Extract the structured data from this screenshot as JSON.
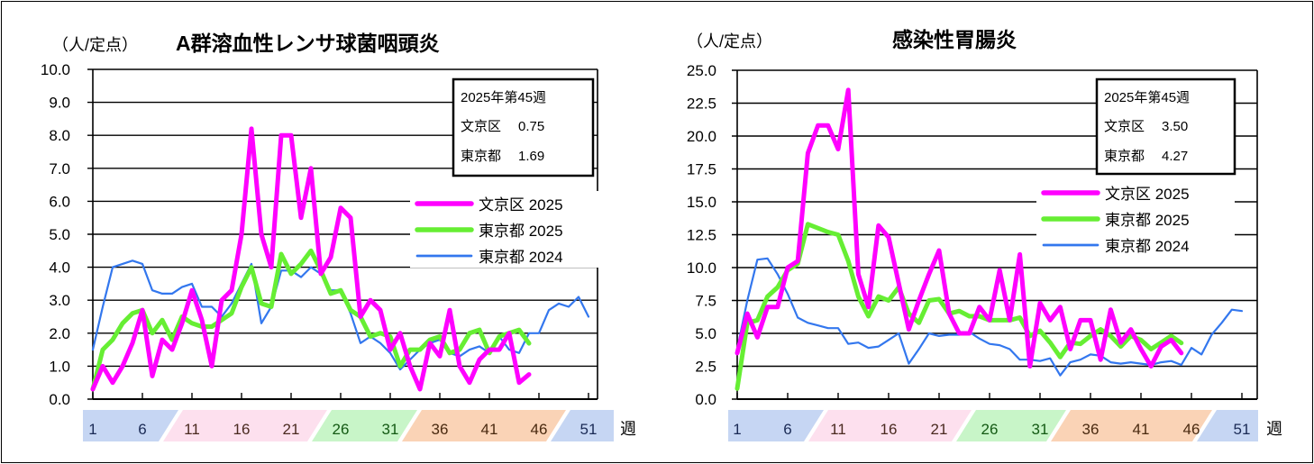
{
  "week_unit": "週",
  "colors": {
    "bunkyo_2025": "#ff00ff",
    "tokyo_2025": "#66ee33",
    "tokyo_2024": "#3377ee",
    "band_blue": "#c6d6f3",
    "band_pink": "#fde0ee",
    "band_green": "#c8f5c8",
    "band_orange": "#fad3b6"
  },
  "chart_data": [
    {
      "type": "line",
      "title": "A群溶血性レンサ球菌咽頭炎",
      "ylabel": "（人/定点）",
      "xlabel": "週",
      "ylim": [
        0,
        10
      ],
      "yticks": [
        "0.0",
        "1.0",
        "2.0",
        "3.0",
        "4.0",
        "5.0",
        "6.0",
        "7.0",
        "8.0",
        "9.0",
        "10.0"
      ],
      "xticks": [
        "1",
        "6",
        "11",
        "16",
        "21",
        "26",
        "31",
        "36",
        "41",
        "46",
        "51"
      ],
      "grid": true,
      "legend_position": "right",
      "info_box": {
        "heading": "2025年第45週",
        "rows": [
          {
            "label": "文京区",
            "value": "0.75"
          },
          {
            "label": "東京都",
            "value": "1.69"
          }
        ]
      },
      "series": [
        {
          "name": "文京区 2025",
          "values": [
            0.3,
            1.0,
            0.5,
            1.0,
            1.7,
            2.7,
            0.7,
            1.8,
            1.5,
            2.3,
            3.3,
            2.4,
            1.0,
            3.0,
            3.3,
            5.0,
            8.2,
            5.0,
            4.0,
            8.0,
            8.0,
            5.5,
            7.0,
            3.8,
            4.3,
            5.8,
            5.5,
            2.5,
            3.0,
            2.7,
            1.5,
            2.0,
            1.0,
            0.3,
            1.7,
            1.3,
            2.7,
            1.0,
            0.5,
            1.2,
            1.5,
            1.5,
            2.0,
            0.5,
            0.75
          ]
        },
        {
          "name": "東京都 2025",
          "values": [
            0.3,
            1.5,
            1.8,
            2.3,
            2.6,
            2.7,
            2.0,
            2.4,
            1.8,
            2.5,
            2.3,
            2.2,
            2.2,
            2.4,
            2.6,
            3.4,
            4.0,
            2.9,
            2.8,
            4.4,
            3.8,
            4.1,
            4.5,
            3.9,
            3.2,
            3.3,
            2.7,
            2.5,
            1.9,
            2.0,
            1.9,
            1.0,
            1.5,
            1.5,
            1.8,
            1.9,
            1.4,
            1.5,
            2.0,
            2.1,
            1.4,
            1.9,
            2.0,
            2.1,
            1.69
          ]
        },
        {
          "name": "東京都 2024",
          "values": [
            1.5,
            2.8,
            4.0,
            4.1,
            4.2,
            4.1,
            3.3,
            3.2,
            3.2,
            3.4,
            3.5,
            2.8,
            2.8,
            2.5,
            2.9,
            3.5,
            4.1,
            2.3,
            2.8,
            3.9,
            3.9,
            3.7,
            4.0,
            3.8,
            3.3,
            3.3,
            2.6,
            1.7,
            1.9,
            1.7,
            1.4,
            0.9,
            1.2,
            1.5,
            1.7,
            1.8,
            1.4,
            1.3,
            1.5,
            1.6,
            1.4,
            1.9,
            1.5,
            1.4,
            2.0,
            2.0,
            2.7,
            2.9,
            2.8,
            3.1,
            2.5
          ]
        }
      ]
    },
    {
      "type": "line",
      "title": "感染性胃腸炎",
      "ylabel": "（人/定点）",
      "xlabel": "週",
      "ylim": [
        0,
        25
      ],
      "yticks": [
        "0.0",
        "2.5",
        "5.0",
        "7.5",
        "10.0",
        "12.5",
        "15.0",
        "17.5",
        "20.0",
        "22.5",
        "25.0"
      ],
      "xticks": [
        "1",
        "6",
        "11",
        "16",
        "21",
        "26",
        "31",
        "36",
        "41",
        "46",
        "51"
      ],
      "grid": true,
      "legend_position": "right",
      "info_box": {
        "heading": "2025年第45週",
        "rows": [
          {
            "label": "文京区",
            "value": "3.50"
          },
          {
            "label": "東京都",
            "value": "4.27"
          }
        ]
      },
      "series": [
        {
          "name": "文京区 2025",
          "values": [
            3.5,
            6.5,
            4.7,
            7.0,
            7.0,
            10.0,
            10.5,
            18.7,
            20.8,
            20.8,
            19.0,
            23.5,
            9.5,
            7.0,
            13.2,
            12.3,
            8.8,
            5.3,
            7.5,
            9.5,
            11.3,
            6.5,
            5.0,
            5.0,
            7.0,
            6.0,
            9.8,
            6.0,
            11.0,
            2.5,
            7.3,
            6.0,
            7.0,
            3.8,
            6.0,
            6.0,
            3.0,
            6.8,
            4.3,
            5.3,
            3.8,
            2.5,
            4.0,
            4.5,
            3.5
          ]
        },
        {
          "name": "東京都 2025",
          "values": [
            0.8,
            5.8,
            6.0,
            7.8,
            8.5,
            9.8,
            10.3,
            13.3,
            13.0,
            12.7,
            12.5,
            10.5,
            7.8,
            6.3,
            7.8,
            7.5,
            8.5,
            6.5,
            5.8,
            7.5,
            7.6,
            6.5,
            6.7,
            6.3,
            6.3,
            6.0,
            6.0,
            6.0,
            6.2,
            4.8,
            5.2,
            4.3,
            3.2,
            4.3,
            4.2,
            4.8,
            5.3,
            4.8,
            4.0,
            4.8,
            4.5,
            3.8,
            4.3,
            4.8,
            4.27
          ]
        },
        {
          "name": "東京都 2024",
          "values": [
            3.8,
            7.5,
            10.6,
            10.7,
            9.5,
            8.0,
            6.2,
            5.8,
            5.6,
            5.4,
            5.4,
            4.2,
            4.3,
            3.9,
            4.0,
            4.5,
            5.0,
            2.7,
            3.8,
            5.0,
            4.8,
            4.9,
            4.9,
            5.1,
            4.6,
            4.2,
            4.1,
            3.8,
            3.0,
            3.0,
            2.9,
            3.1,
            1.8,
            2.8,
            3.0,
            3.4,
            3.3,
            2.8,
            2.7,
            2.8,
            2.7,
            2.6,
            2.8,
            2.9,
            2.6,
            3.9,
            3.4,
            4.9,
            5.8,
            6.8,
            6.7
          ]
        }
      ]
    }
  ]
}
